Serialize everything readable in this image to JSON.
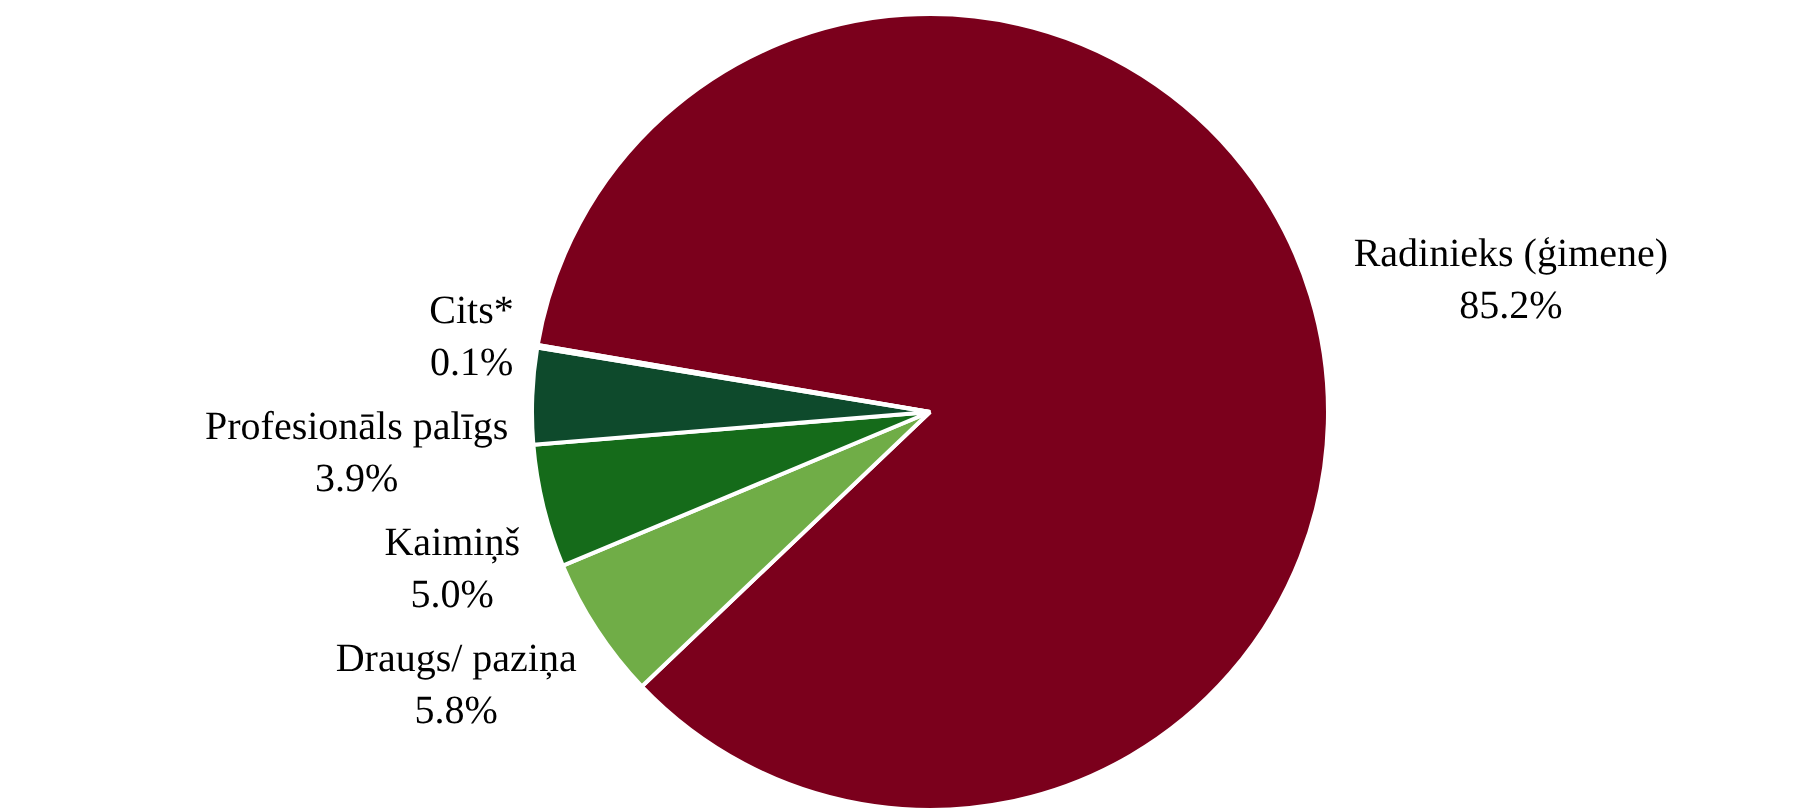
{
  "chart_data": {
    "type": "pie",
    "categories": [
      "Radinieks (ģimene)",
      "Draugs/ paziņa",
      "Kaimiņš",
      "Profesionāls palīgs",
      "Cits*"
    ],
    "values": [
      85.2,
      5.8,
      5.0,
      3.9,
      0.1
    ],
    "value_labels": [
      "85.2%",
      "5.8%",
      "5.0%",
      "3.9%",
      "0.1%"
    ],
    "colors": [
      "#7b001c",
      "#70ad47",
      "#156b1a",
      "#0e4a2c",
      "#f2e3a6"
    ],
    "legend": false
  }
}
